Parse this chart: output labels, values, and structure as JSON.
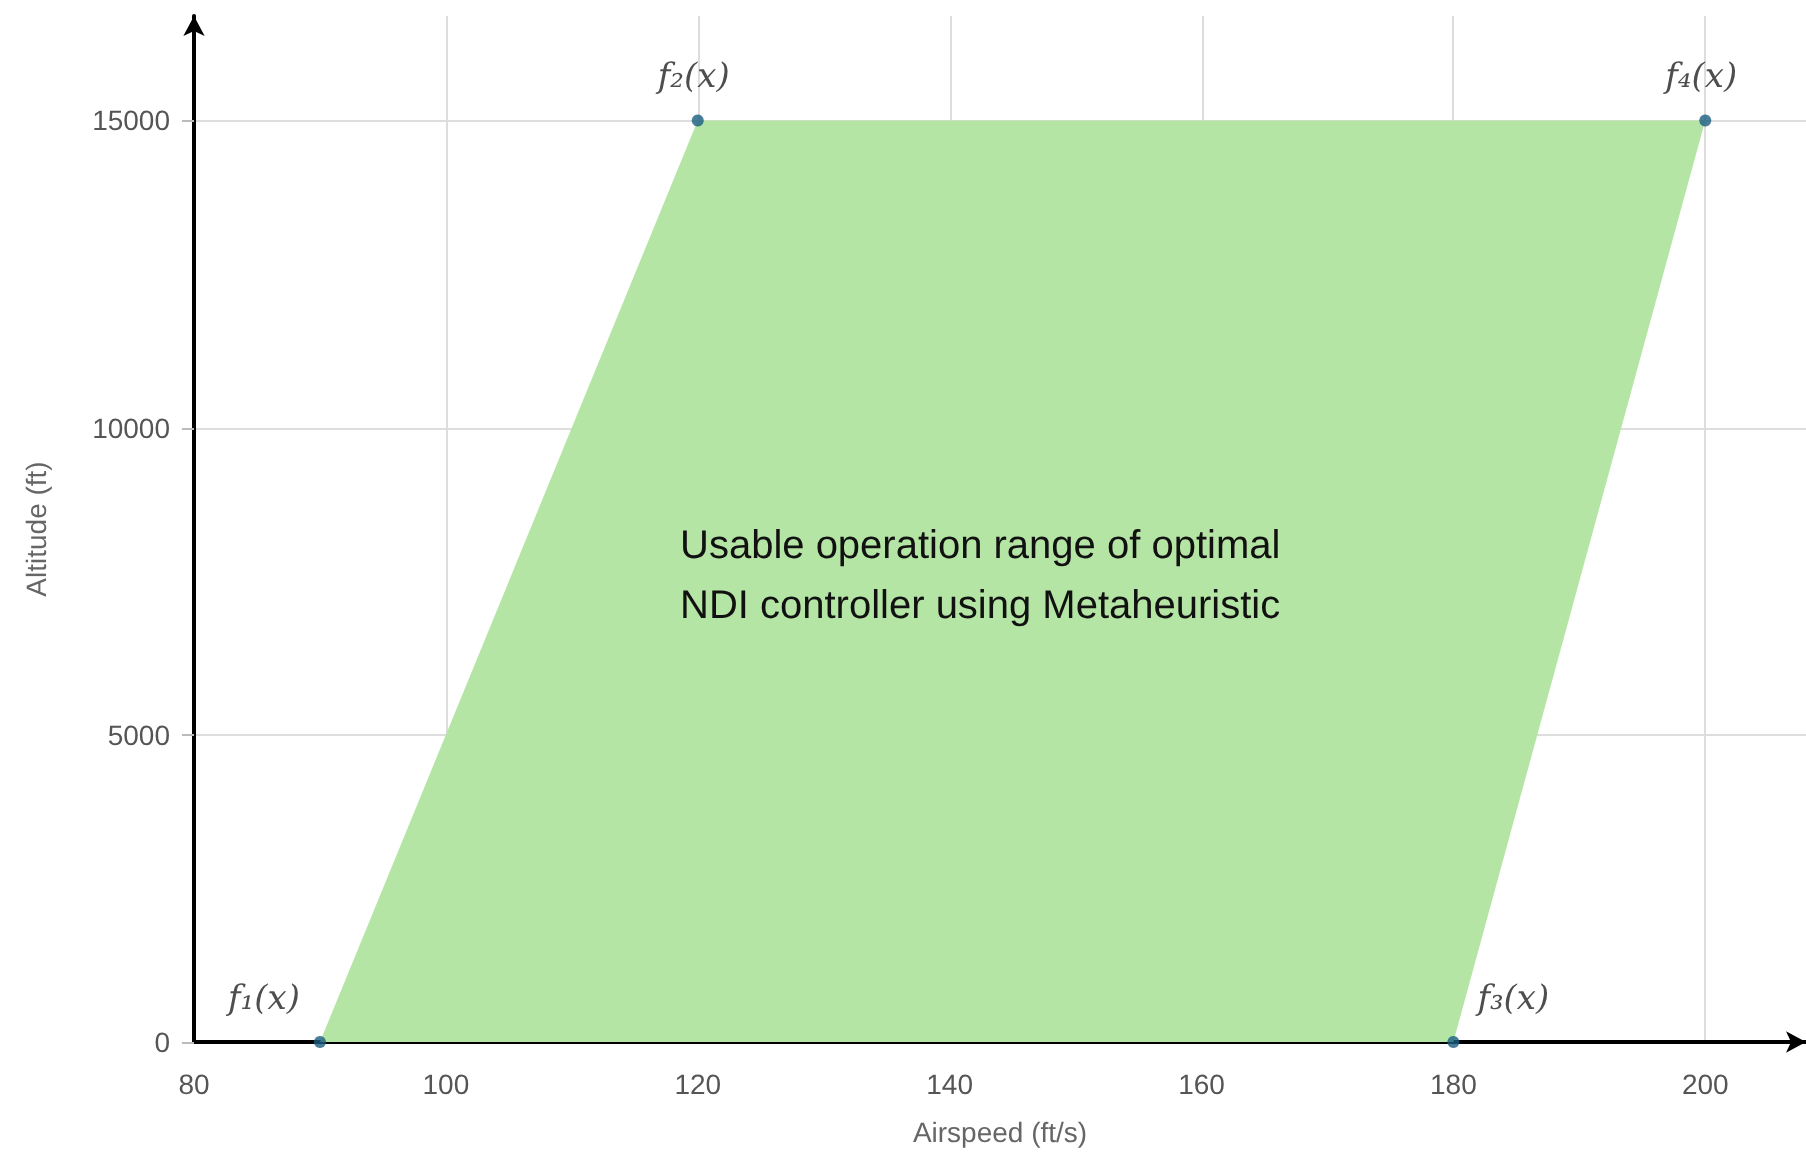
{
  "chart_data": {
    "type": "area",
    "xlabel": "Airspeed (ft/s)",
    "ylabel": "Altitude (ft)",
    "series": [
      {
        "type": "area",
        "color": "#b5e5a4",
        "x": [
          90,
          120,
          200,
          180
        ],
        "values": [
          0,
          15000,
          15000,
          0
        ]
      },
      {
        "type": "scatter",
        "color": "#1b5e82",
        "x": [
          90,
          120,
          200,
          180
        ],
        "values": [
          0,
          15000,
          15000,
          0
        ],
        "marker": "circle"
      }
    ],
    "annotations": [
      {
        "text": "f₁(x)",
        "x": 90,
        "y": 0
      },
      {
        "text": "f₂(x)",
        "x": 120,
        "y": 15000
      },
      {
        "text": "f₃(x)",
        "x": 180,
        "y": 0
      },
      {
        "text": "f₄(x)",
        "x": 200,
        "y": 15000
      },
      "Usable operation range of optimal\nNDI controller using Metaheuristic"
    ],
    "xlim": [
      80,
      208
    ],
    "ylim": [
      0,
      16700
    ],
    "xticks": [
      80,
      100,
      120,
      140,
      160,
      180,
      200
    ],
    "yticks": [
      0,
      5000,
      10000,
      15000
    ],
    "grid": true
  }
}
